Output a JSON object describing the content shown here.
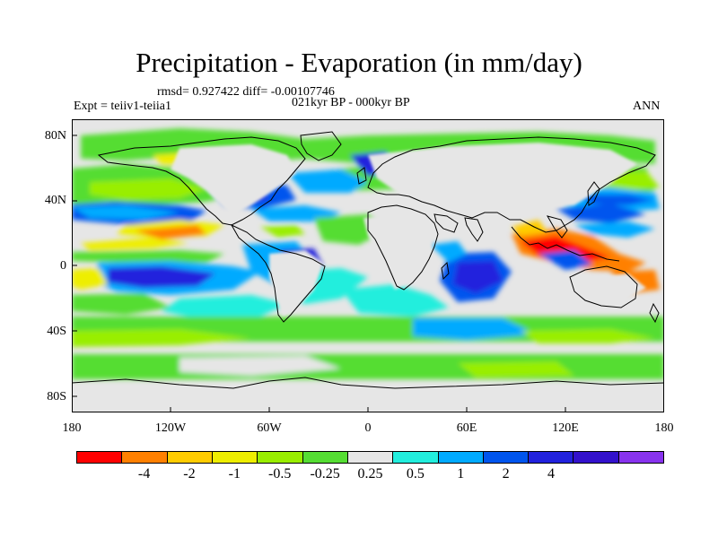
{
  "title": "Precipitation - Evaporation (in mm/day)",
  "stats": "rmsd= 0.927422 diff= -0.00107746",
  "experiment": "Expt = teiiv1-teiia1",
  "period": "021kyr BP - 000kyr BP",
  "season": "ANN",
  "map": {
    "projection": "cylindrical equidistant",
    "lon_range": [
      -180,
      180
    ],
    "lat_range": [
      -90,
      90
    ],
    "ocean_background": "#e6e6e6",
    "y_ticks": [
      "80N",
      "40N",
      "0",
      "40S",
      "80S"
    ],
    "x_ticks": [
      "180",
      "120W",
      "60W",
      "0",
      "60E",
      "120E",
      "180"
    ]
  },
  "colorbar": {
    "colors": [
      "#ff0000",
      "#ff8000",
      "#ffcc00",
      "#eeee00",
      "#99ee00",
      "#55dd33",
      "#e6e6e6",
      "#22eedd",
      "#00aaff",
      "#0055ee",
      "#2222dd",
      "#3311cc",
      "#8833ee"
    ],
    "labels": [
      "-4",
      "-2",
      "-1",
      "-0.5",
      "-0.25",
      "0.25",
      "0.5",
      "1",
      "2",
      "4"
    ]
  }
}
